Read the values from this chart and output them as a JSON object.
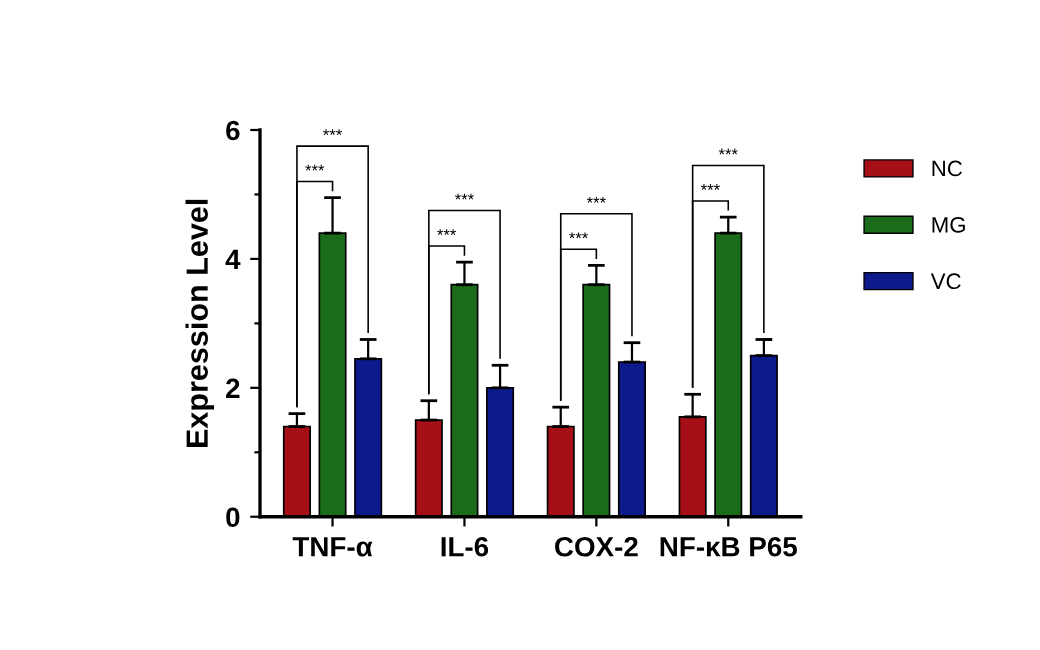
{
  "chart_data": {
    "type": "bar",
    "ylabel": "Expression Level",
    "categories": [
      "TNF-α",
      "IL-6",
      "COX-2",
      "NF-κB P65"
    ],
    "series": [
      {
        "name": "NC",
        "color": "#a50f15",
        "values": [
          1.4,
          1.5,
          1.4,
          1.55
        ],
        "errors": [
          0.2,
          0.3,
          0.3,
          0.35
        ]
      },
      {
        "name": "MG",
        "color": "#1a6b1a",
        "values": [
          4.4,
          3.6,
          3.6,
          4.4
        ],
        "errors": [
          0.55,
          0.35,
          0.3,
          0.25
        ]
      },
      {
        "name": "VC",
        "color": "#0d1a8c",
        "values": [
          2.45,
          2.0,
          2.4,
          2.5
        ],
        "errors": [
          0.3,
          0.35,
          0.3,
          0.25
        ]
      }
    ],
    "ylim": [
      0,
      6
    ],
    "yticks": [
      0,
      {
        "value": 1,
        "label": null
      },
      2,
      {
        "value": 3,
        "label": null
      },
      4,
      {
        "value": 5,
        "label": null
      },
      6
    ],
    "annotations": [
      "***",
      "***",
      "***",
      "***",
      "***",
      "***",
      "***",
      "***"
    ],
    "legend": "right",
    "grid": false
  }
}
